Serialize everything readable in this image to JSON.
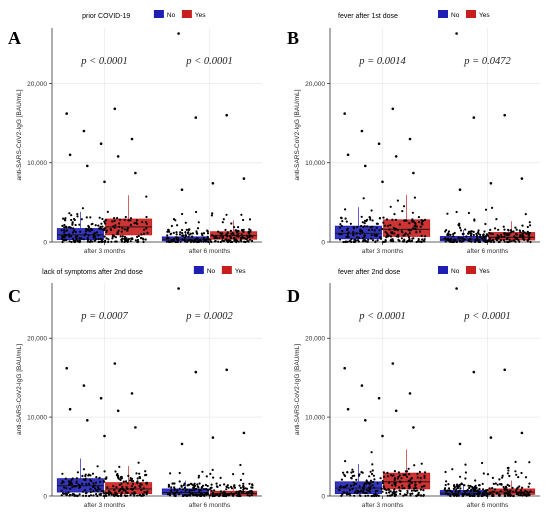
{
  "figure": {
    "panels": [
      {
        "letter": "A",
        "legend_title": "prior COVID-19",
        "legend_no": "No",
        "legend_yes": "Yes",
        "ylabel": "anti-SARS-CoV2-IgG [BAU/mL]"
      },
      {
        "letter": "B",
        "legend_title": "fever after 1st dose",
        "legend_no": "No",
        "legend_yes": "Yes",
        "ylabel": "anti-SARS-CoV2-IgG [BAU/mL]"
      },
      {
        "letter": "C",
        "legend_title": "lack of symptoms after 2nd dose",
        "legend_no": "No",
        "legend_yes": "Yes",
        "ylabel": "anti-SARS-CoV2-IgG [BAU/mL]"
      },
      {
        "letter": "D",
        "legend_title": "fever after 2nd dose",
        "legend_no": "No",
        "legend_yes": "Yes",
        "ylabel": "anti-SARS-CoV2-IgG [BAU/mL]"
      }
    ]
  },
  "colors": {
    "no": "#1f1fb4",
    "yes": "#c81e1e",
    "points": "#000000",
    "grid": "#e8e8e8",
    "axis": "#333333"
  },
  "chart_data": [
    {
      "type": "box-jitter",
      "title": "prior COVID-19",
      "ylabel": "anti-SARS-CoV2-IgG [BAU/mL]",
      "ylim": [
        0,
        27000
      ],
      "yticks": [
        0,
        10000,
        20000
      ],
      "ytick_labels": [
        "0",
        "10,000",
        "20,000"
      ],
      "categories": [
        "after 3 months",
        "after 6 months"
      ],
      "pvalues": [
        "p < 0.0001",
        "p < 0.0001"
      ],
      "grid": true,
      "legend_position": "top",
      "series": [
        {
          "name": "No",
          "boxes": [
            {
              "q1": 300,
              "median": 900,
              "q3": 1700
            },
            {
              "q1": 150,
              "median": 350,
              "q3": 650
            }
          ]
        },
        {
          "name": "Yes",
          "boxes": [
            {
              "q1": 900,
              "median": 1900,
              "q3": 2900
            },
            {
              "q1": 350,
              "median": 800,
              "q3": 1300
            }
          ]
        }
      ],
      "outliers": [
        {
          "x": "after 3 months",
          "y": 16200
        },
        {
          "x": "after 3 months",
          "y": 16800
        },
        {
          "x": "after 3 months",
          "y": 14000
        },
        {
          "x": "after 3 months",
          "y": 13000
        },
        {
          "x": "after 3 months",
          "y": 12400
        },
        {
          "x": "after 3 months",
          "y": 11000
        },
        {
          "x": "after 3 months",
          "y": 10800
        },
        {
          "x": "after 3 months",
          "y": 9600
        },
        {
          "x": "after 3 months",
          "y": 8700
        },
        {
          "x": "after 3 months",
          "y": 7600
        },
        {
          "x": "after 6 months",
          "y": 26300
        },
        {
          "x": "after 6 months",
          "y": 16000
        },
        {
          "x": "after 6 months",
          "y": 15700
        },
        {
          "x": "after 6 months",
          "y": 8000
        },
        {
          "x": "after 6 months",
          "y": 7400
        },
        {
          "x": "after 6 months",
          "y": 6600
        }
      ]
    },
    {
      "type": "box-jitter",
      "title": "fever after 1st dose",
      "ylabel": "anti-SARS-CoV2-IgG [BAU/mL]",
      "ylim": [
        0,
        27000
      ],
      "yticks": [
        0,
        10000,
        20000
      ],
      "ytick_labels": [
        "0",
        "10,000",
        "20,000"
      ],
      "categories": [
        "after 3 months",
        "after 6 months"
      ],
      "pvalues": [
        "p = 0.0014",
        "p = 0.0472"
      ],
      "grid": true,
      "legend_position": "top",
      "series": [
        {
          "name": "No",
          "boxes": [
            {
              "q1": 400,
              "median": 1100,
              "q3": 2000
            },
            {
              "q1": 150,
              "median": 350,
              "q3": 700
            }
          ]
        },
        {
          "name": "Yes",
          "boxes": [
            {
              "q1": 700,
              "median": 1600,
              "q3": 2800
            },
            {
              "q1": 250,
              "median": 600,
              "q3": 1200
            }
          ]
        }
      ],
      "outliers": [
        {
          "x": "after 3 months",
          "y": 16200
        },
        {
          "x": "after 3 months",
          "y": 16800
        },
        {
          "x": "after 3 months",
          "y": 14000
        },
        {
          "x": "after 3 months",
          "y": 13000
        },
        {
          "x": "after 3 months",
          "y": 12400
        },
        {
          "x": "after 3 months",
          "y": 11000
        },
        {
          "x": "after 3 months",
          "y": 10800
        },
        {
          "x": "after 3 months",
          "y": 9600
        },
        {
          "x": "after 3 months",
          "y": 8700
        },
        {
          "x": "after 3 months",
          "y": 7600
        },
        {
          "x": "after 6 months",
          "y": 26300
        },
        {
          "x": "after 6 months",
          "y": 16000
        },
        {
          "x": "after 6 months",
          "y": 15700
        },
        {
          "x": "after 6 months",
          "y": 8000
        },
        {
          "x": "after 6 months",
          "y": 7400
        },
        {
          "x": "after 6 months",
          "y": 6600
        }
      ]
    },
    {
      "type": "box-jitter",
      "title": "lack of symptoms after 2nd dose",
      "ylabel": "anti-SARS-CoV2-IgG [BAU/mL]",
      "ylim": [
        0,
        27000
      ],
      "yticks": [
        0,
        10000,
        20000
      ],
      "ytick_labels": [
        "0",
        "10,000",
        "20,000"
      ],
      "categories": [
        "after 3 months",
        "after 6 months"
      ],
      "pvalues": [
        "p = 0.0007",
        "p = 0.0002"
      ],
      "grid": true,
      "legend_position": "top",
      "series": [
        {
          "name": "No",
          "boxes": [
            {
              "q1": 500,
              "median": 1300,
              "q3": 2200
            },
            {
              "q1": 200,
              "median": 450,
              "q3": 900
            }
          ]
        },
        {
          "name": "Yes",
          "boxes": [
            {
              "q1": 300,
              "median": 900,
              "q3": 1700
            },
            {
              "q1": 120,
              "median": 300,
              "q3": 600
            }
          ]
        }
      ],
      "outliers": [
        {
          "x": "after 3 months",
          "y": 16200
        },
        {
          "x": "after 3 months",
          "y": 16800
        },
        {
          "x": "after 3 months",
          "y": 14000
        },
        {
          "x": "after 3 months",
          "y": 13000
        },
        {
          "x": "after 3 months",
          "y": 12400
        },
        {
          "x": "after 3 months",
          "y": 11000
        },
        {
          "x": "after 3 months",
          "y": 10800
        },
        {
          "x": "after 3 months",
          "y": 9600
        },
        {
          "x": "after 3 months",
          "y": 8700
        },
        {
          "x": "after 3 months",
          "y": 7600
        },
        {
          "x": "after 6 months",
          "y": 26300
        },
        {
          "x": "after 6 months",
          "y": 16000
        },
        {
          "x": "after 6 months",
          "y": 15700
        },
        {
          "x": "after 6 months",
          "y": 8000
        },
        {
          "x": "after 6 months",
          "y": 7400
        },
        {
          "x": "after 6 months",
          "y": 6600
        }
      ]
    },
    {
      "type": "box-jitter",
      "title": "fever after 2nd dose",
      "ylabel": "anti-SARS-CoV2-IgG [BAU/mL]",
      "ylim": [
        0,
        27000
      ],
      "yticks": [
        0,
        10000,
        20000
      ],
      "ytick_labels": [
        "0",
        "10,000",
        "20,000"
      ],
      "categories": [
        "after 3 months",
        "after 6 months"
      ],
      "pvalues": [
        "p < 0.0001",
        "p < 0.0001"
      ],
      "grid": true,
      "legend_position": "top",
      "series": [
        {
          "name": "No",
          "boxes": [
            {
              "q1": 300,
              "median": 1000,
              "q3": 1800
            },
            {
              "q1": 150,
              "median": 350,
              "q3": 700
            }
          ]
        },
        {
          "name": "Yes",
          "boxes": [
            {
              "q1": 900,
              "median": 1800,
              "q3": 2900
            },
            {
              "q1": 200,
              "median": 500,
              "q3": 900
            }
          ]
        }
      ],
      "outliers": [
        {
          "x": "after 3 months",
          "y": 16200
        },
        {
          "x": "after 3 months",
          "y": 16800
        },
        {
          "x": "after 3 months",
          "y": 14000
        },
        {
          "x": "after 3 months",
          "y": 13000
        },
        {
          "x": "after 3 months",
          "y": 12400
        },
        {
          "x": "after 3 months",
          "y": 11000
        },
        {
          "x": "after 3 months",
          "y": 10800
        },
        {
          "x": "after 3 months",
          "y": 9600
        },
        {
          "x": "after 3 months",
          "y": 8700
        },
        {
          "x": "after 3 months",
          "y": 7600
        },
        {
          "x": "after 6 months",
          "y": 26300
        },
        {
          "x": "after 6 months",
          "y": 16000
        },
        {
          "x": "after 6 months",
          "y": 15700
        },
        {
          "x": "after 6 months",
          "y": 8000
        },
        {
          "x": "after 6 months",
          "y": 7400
        },
        {
          "x": "after 6 months",
          "y": 6600
        }
      ]
    }
  ]
}
